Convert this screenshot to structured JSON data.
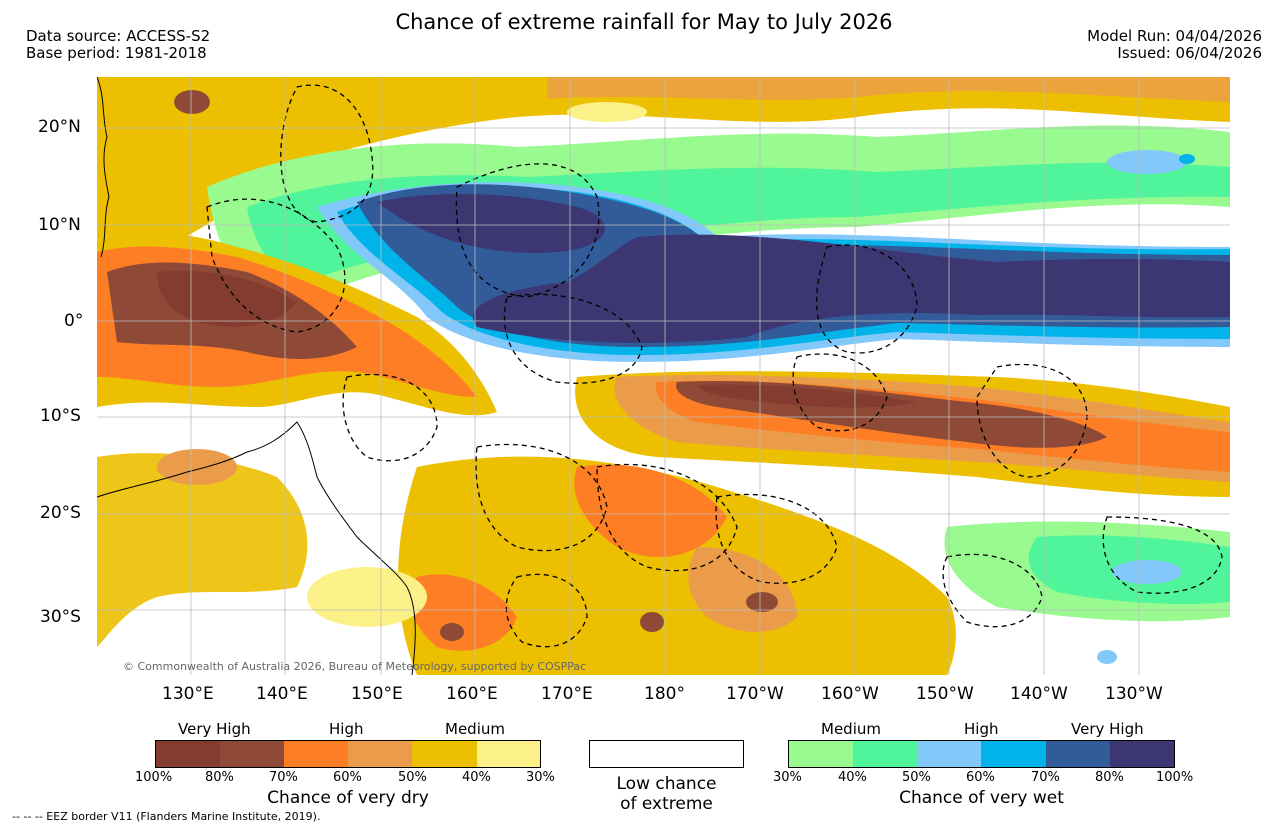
{
  "header": {
    "title": "Chance of extreme rainfall for May to July 2026",
    "data_source": "Data source: ACCESS-S2",
    "base_period": "Base period: 1981-2018",
    "model_run": "Model Run: 04/04/2026",
    "issued": "Issued: 06/04/2026"
  },
  "map": {
    "lat_labels": [
      "20°N",
      "10°N",
      "0°",
      "10°S",
      "20°S",
      "30°S"
    ],
    "lon_labels": [
      "130°E",
      "140°E",
      "150°E",
      "160°E",
      "170°E",
      "180°",
      "170°W",
      "160°W",
      "150°W",
      "140°W",
      "130°W"
    ],
    "copyright": "© Commonwealth of Australia 2026, Bureau of Meteorology, supported by COSPPac"
  },
  "legend": {
    "dry": {
      "title": "Chance of very dry",
      "levels": [
        "Very High",
        "High",
        "Medium"
      ],
      "percentages": [
        "100%",
        "80%",
        "70%",
        "60%",
        "50%",
        "40%",
        "30%"
      ],
      "colors": [
        "#843c30",
        "#8e4a36",
        "#fd7e24",
        "#eb9c4a",
        "#ecc000",
        "#fcf188"
      ]
    },
    "neutral": {
      "line1": "Low chance",
      "line2": "of extreme"
    },
    "wet": {
      "title": "Chance of very wet",
      "levels": [
        "Medium",
        "High",
        "Very High"
      ],
      "percentages": [
        "30%",
        "40%",
        "50%",
        "60%",
        "70%",
        "80%",
        "100%"
      ],
      "colors": [
        "#98fa8f",
        "#50f49a",
        "#82c8fa",
        "#00b4ea",
        "#325b9a",
        "#3c3672"
      ]
    }
  },
  "footnote": "-- -- -- EEZ border V11 (Flanders Marine Institute, 2019)."
}
